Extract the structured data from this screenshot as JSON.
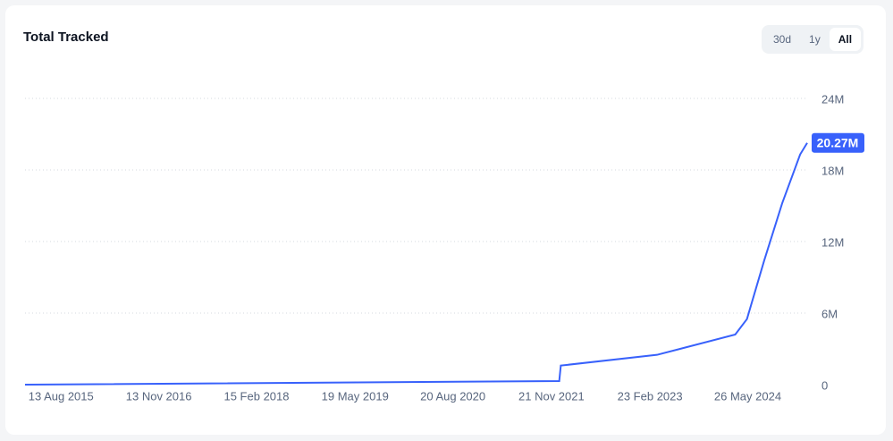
{
  "title": "Total Tracked",
  "range_buttons": [
    "30d",
    "1y",
    "All"
  ],
  "active_button": 2,
  "chart_data": {
    "type": "line",
    "x": [
      2015.16,
      2021.99,
      2022.01,
      2023.24,
      2024.24,
      2024.39,
      2024.61,
      2024.84,
      2025.07,
      2025.16
    ],
    "series": [
      {
        "name": "Total Tracked",
        "color": "#3861fb",
        "values": [
          0,
          300000,
          1600000,
          2500000,
          4200000,
          5500000,
          10400000,
          15200000,
          19300000,
          20270000
        ],
        "value_labels": [
          null,
          null,
          null,
          null,
          null,
          null,
          null,
          null,
          null,
          "20.27M"
        ]
      }
    ],
    "xlim": [
      2015.16,
      2025.16
    ],
    "xticks": [
      {
        "value": 2015.62,
        "label": "13 Aug 2015"
      },
      {
        "value": 2016.87,
        "label": "13 Nov 2016"
      },
      {
        "value": 2018.12,
        "label": "15 Feb 2018"
      },
      {
        "value": 2019.38,
        "label": "19 May 2019"
      },
      {
        "value": 2020.63,
        "label": "20 Aug 2020"
      },
      {
        "value": 2021.89,
        "label": "21 Nov 2021"
      },
      {
        "value": 2023.15,
        "label": "23 Feb 2023"
      },
      {
        "value": 2024.4,
        "label": "26 May 2024"
      }
    ],
    "ylim": [
      0,
      24000000
    ],
    "yticks": [
      {
        "value": 0,
        "label": "0"
      },
      {
        "value": 6000000,
        "label": "6M"
      },
      {
        "value": 12000000,
        "label": "12M"
      },
      {
        "value": 18000000,
        "label": "18M"
      },
      {
        "value": 24000000,
        "label": "24M"
      }
    ],
    "grid": true
  }
}
